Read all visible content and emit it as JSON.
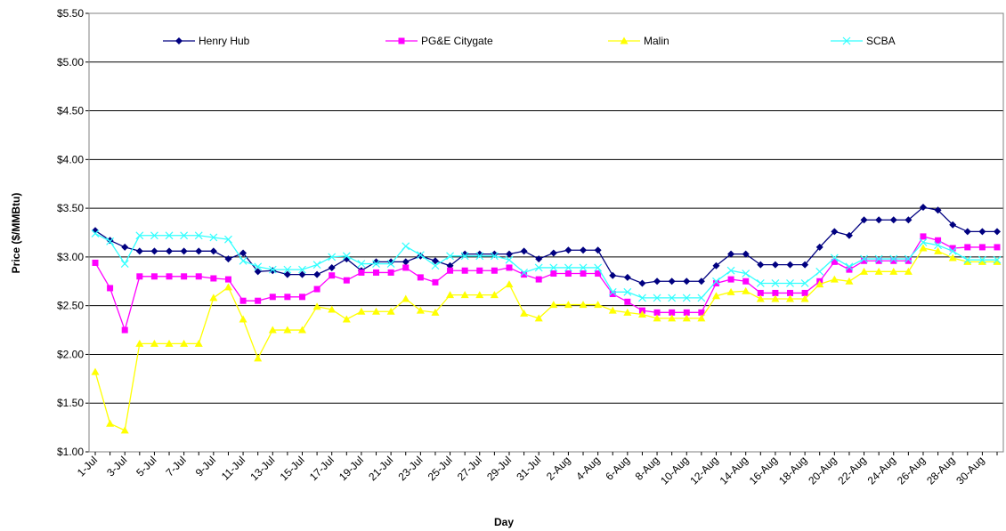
{
  "chart_data": {
    "type": "line",
    "x_label": "Day",
    "y_label": "Price ($/MMBtu)",
    "categories": [
      "1-Jul",
      null,
      "3-Jul",
      null,
      "5-Jul",
      null,
      "7-Jul",
      null,
      "9-Jul",
      null,
      "11-Jul",
      null,
      "13-Jul",
      null,
      "15-Jul",
      null,
      "17-Jul",
      null,
      "19-Jul",
      null,
      "21-Jul",
      null,
      "23-Jul",
      null,
      "25-Jul",
      null,
      "27-Jul",
      null,
      "29-Jul",
      null,
      "31-Jul",
      null,
      "2-Aug",
      null,
      "4-Aug",
      null,
      "6-Aug",
      null,
      "8-Aug",
      null,
      "10-Aug",
      null,
      "12-Aug",
      null,
      "14-Aug",
      null,
      "16-Aug",
      null,
      "18-Aug",
      null,
      "20-Aug",
      null,
      "22-Aug",
      null,
      "24-Aug",
      null,
      "26-Aug",
      null,
      "28-Aug",
      null,
      "30-Aug",
      null
    ],
    "series": [
      {
        "name": "Henry Hub",
        "color": "#000080",
        "marker": "diamond",
        "values": [
          3.27,
          3.17,
          3.1,
          3.06,
          3.06,
          3.06,
          3.06,
          3.06,
          3.06,
          2.98,
          3.04,
          2.85,
          2.86,
          2.82,
          2.82,
          2.82,
          2.89,
          2.98,
          2.86,
          2.95,
          2.95,
          2.95,
          3.01,
          2.96,
          2.91,
          3.03,
          3.03,
          3.03,
          3.03,
          3.06,
          2.98,
          3.04,
          3.07,
          3.07,
          3.07,
          2.81,
          2.79,
          2.73,
          2.75,
          2.75,
          2.75,
          2.75,
          2.91,
          3.03,
          3.03,
          2.92,
          2.92,
          2.92,
          2.92,
          3.1,
          3.26,
          3.22,
          3.38,
          3.38,
          3.38,
          3.38,
          3.51,
          3.48,
          3.33,
          3.26,
          3.26,
          3.26
        ]
      },
      {
        "name": "PG&E Citygate",
        "color": "#ff00ff",
        "marker": "square",
        "values": [
          2.94,
          2.68,
          2.25,
          2.8,
          2.8,
          2.8,
          2.8,
          2.8,
          2.78,
          2.77,
          2.55,
          2.55,
          2.59,
          2.59,
          2.59,
          2.67,
          2.81,
          2.76,
          2.84,
          2.84,
          2.84,
          2.89,
          2.79,
          2.74,
          2.86,
          2.86,
          2.86,
          2.86,
          2.89,
          2.82,
          2.77,
          2.83,
          2.83,
          2.83,
          2.83,
          2.62,
          2.54,
          2.45,
          2.43,
          2.43,
          2.43,
          2.43,
          2.73,
          2.77,
          2.75,
          2.63,
          2.63,
          2.63,
          2.63,
          2.75,
          2.95,
          2.87,
          2.96,
          2.96,
          2.96,
          2.96,
          3.21,
          3.17,
          3.09,
          3.1,
          3.1,
          3.1
        ]
      },
      {
        "name": "Malin",
        "color": "#ffff00",
        "marker": "triangle",
        "values": [
          1.82,
          1.29,
          1.22,
          2.11,
          2.11,
          2.11,
          2.11,
          2.11,
          2.58,
          2.69,
          2.36,
          1.96,
          2.25,
          2.25,
          2.25,
          2.49,
          2.46,
          2.36,
          2.44,
          2.44,
          2.44,
          2.57,
          2.45,
          2.43,
          2.61,
          2.61,
          2.61,
          2.61,
          2.72,
          2.42,
          2.37,
          2.51,
          2.51,
          2.51,
          2.51,
          2.45,
          2.43,
          2.41,
          2.37,
          2.37,
          2.37,
          2.37,
          2.6,
          2.64,
          2.65,
          2.57,
          2.57,
          2.57,
          2.57,
          2.72,
          2.77,
          2.75,
          2.85,
          2.85,
          2.85,
          2.85,
          3.09,
          3.06,
          2.99,
          2.95,
          2.95,
          2.95
        ]
      },
      {
        "name": "SCBA",
        "color": "#33ffff",
        "marker": "x",
        "values": [
          3.24,
          3.16,
          2.93,
          3.22,
          3.22,
          3.22,
          3.22,
          3.22,
          3.2,
          3.18,
          2.96,
          2.9,
          2.87,
          2.87,
          2.87,
          2.92,
          3.0,
          3.01,
          2.93,
          2.93,
          2.93,
          3.11,
          3.02,
          2.91,
          3.01,
          3.01,
          3.01,
          3.01,
          2.97,
          2.84,
          2.89,
          2.89,
          2.89,
          2.89,
          2.89,
          2.64,
          2.64,
          2.58,
          2.58,
          2.58,
          2.58,
          2.58,
          2.75,
          2.86,
          2.83,
          2.73,
          2.73,
          2.73,
          2.73,
          2.85,
          2.99,
          2.9,
          2.98,
          2.98,
          2.98,
          2.98,
          3.15,
          3.12,
          3.06,
          2.97,
          2.97,
          2.97
        ]
      }
    ],
    "ylim": [
      1.0,
      5.5
    ],
    "yticks": [
      {
        "value": 1.0,
        "label": "$1.00"
      },
      {
        "value": 1.5,
        "label": "$1.50"
      },
      {
        "value": 2.0,
        "label": "$2.00"
      },
      {
        "value": 2.5,
        "label": "$2.50"
      },
      {
        "value": 3.0,
        "label": "$3.00"
      },
      {
        "value": 3.5,
        "label": "$3.50"
      },
      {
        "value": 4.0,
        "label": "$4.00"
      },
      {
        "value": 4.5,
        "label": "$4.50"
      },
      {
        "value": 5.0,
        "label": "$5.00"
      },
      {
        "value": 5.5,
        "label": "$5.50"
      }
    ],
    "grid": true,
    "legend": "top"
  }
}
